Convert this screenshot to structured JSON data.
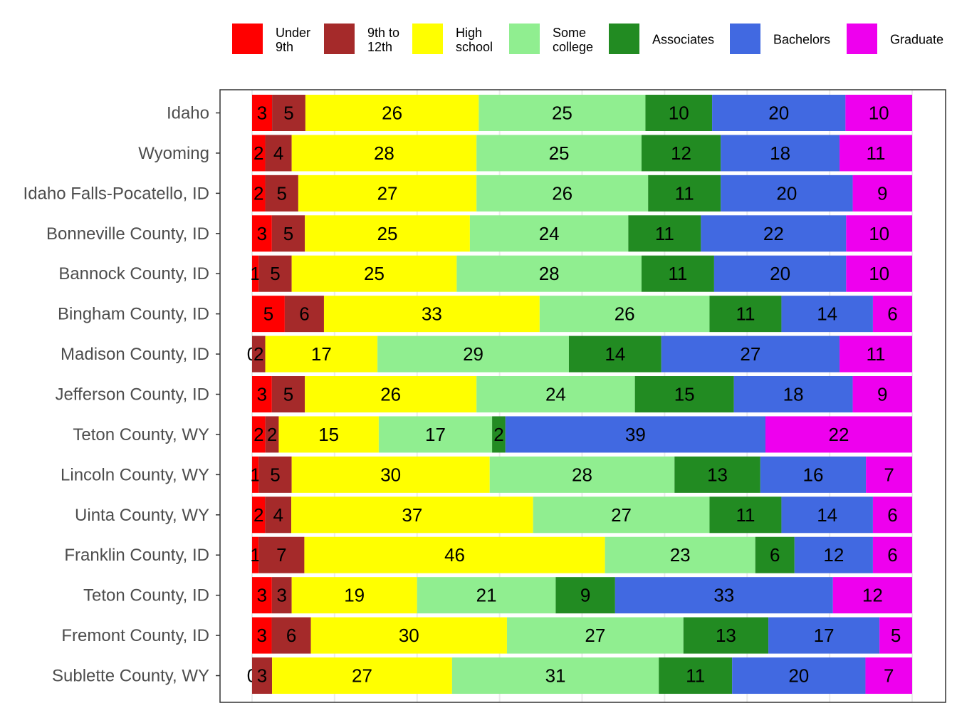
{
  "chart_data": {
    "type": "bar",
    "orientation": "horizontal",
    "stacked": true,
    "normalized": true,
    "title": "",
    "xlabel": "",
    "ylabel": "",
    "xlim": [
      0,
      100
    ],
    "grid": true,
    "legend_position": "top",
    "categories": [
      "Idaho",
      "Wyoming",
      "Idaho Falls-Pocatello, ID",
      "Bonneville County, ID",
      "Bannock County, ID",
      "Bingham County, ID",
      "Madison County, ID",
      "Jefferson County, ID",
      "Teton County, WY",
      "Lincoln County, WY",
      "Uinta County, WY",
      "Franklin County, ID",
      "Teton County, ID",
      "Fremont County, ID",
      "Sublette County, WY"
    ],
    "series": [
      {
        "name": "Under\n9th",
        "color": "#ff0000",
        "values": [
          3,
          2,
          2,
          3,
          1,
          5,
          0,
          3,
          2,
          1,
          2,
          1,
          3,
          3,
          0
        ]
      },
      {
        "name": "9th to\n12th",
        "color": "#a52a2a",
        "values": [
          5,
          4,
          5,
          5,
          5,
          6,
          2,
          5,
          2,
          5,
          4,
          7,
          3,
          6,
          3
        ]
      },
      {
        "name": "High\nschool",
        "color": "#ffff00",
        "values": [
          26,
          28,
          27,
          25,
          25,
          33,
          17,
          26,
          15,
          30,
          37,
          46,
          19,
          30,
          27
        ]
      },
      {
        "name": "Some\ncollege",
        "color": "#90ee90",
        "values": [
          25,
          25,
          26,
          24,
          28,
          26,
          29,
          24,
          17,
          28,
          27,
          23,
          21,
          27,
          31
        ]
      },
      {
        "name": "Associates",
        "color": "#228b22",
        "values": [
          10,
          12,
          11,
          11,
          11,
          11,
          14,
          15,
          2,
          13,
          11,
          6,
          9,
          13,
          11
        ]
      },
      {
        "name": "Bachelors",
        "color": "#4169e1",
        "values": [
          20,
          18,
          20,
          22,
          20,
          14,
          27,
          18,
          39,
          16,
          14,
          12,
          33,
          17,
          20
        ]
      },
      {
        "name": "Graduate",
        "color": "#ee00ee",
        "values": [
          10,
          11,
          9,
          10,
          10,
          6,
          11,
          9,
          22,
          7,
          6,
          6,
          12,
          5,
          7
        ]
      }
    ]
  }
}
